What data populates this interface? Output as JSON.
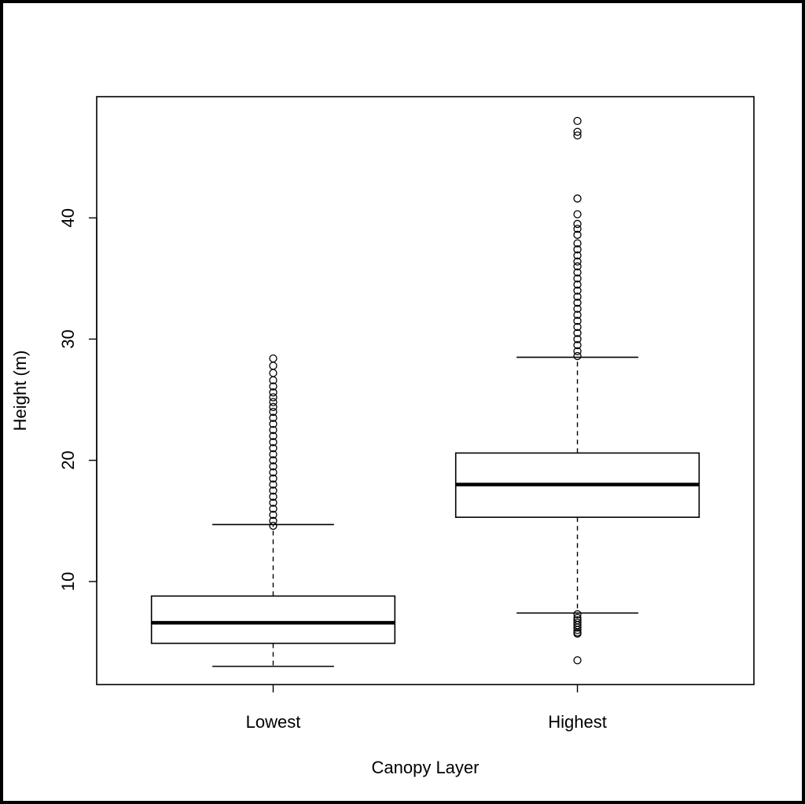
{
  "chart_data": {
    "type": "box",
    "xlabel": "Canopy Layer",
    "ylabel": "Height (m)",
    "ylim": [
      1.5,
      50
    ],
    "yticks": [
      10,
      20,
      30,
      40
    ],
    "categories": [
      "Lowest",
      "Highest"
    ],
    "boxes": [
      {
        "category": "Lowest",
        "whisker_low": 3.0,
        "q1": 4.9,
        "median": 6.6,
        "q3": 8.8,
        "whisker_high": 14.7,
        "outliers": [
          14.6,
          15.0,
          15.5,
          16.0,
          16.5,
          17.0,
          17.5,
          18.0,
          18.5,
          19.0,
          19.5,
          20.0,
          20.5,
          21.0,
          21.5,
          22.0,
          22.5,
          23.0,
          23.5,
          24.0,
          24.4,
          24.8,
          25.2,
          25.6,
          26.1,
          26.6,
          27.2,
          27.8,
          28.4
        ]
      },
      {
        "category": "Highest",
        "whisker_low": 7.4,
        "q1": 15.3,
        "median": 18.0,
        "q3": 20.6,
        "whisker_high": 28.5,
        "outliers": [
          28.6,
          29.0,
          29.5,
          30.0,
          30.5,
          31.0,
          31.5,
          32.0,
          32.5,
          33.0,
          33.5,
          34.0,
          34.5,
          35.0,
          35.5,
          36.0,
          36.4,
          36.9,
          37.4,
          37.9,
          38.6,
          39.1,
          39.5,
          40.3,
          41.6,
          46.8,
          47.1,
          48.0,
          7.3,
          7.0,
          6.8,
          6.6,
          6.4,
          6.2,
          6.0,
          5.8,
          5.7,
          3.5
        ]
      }
    ]
  }
}
